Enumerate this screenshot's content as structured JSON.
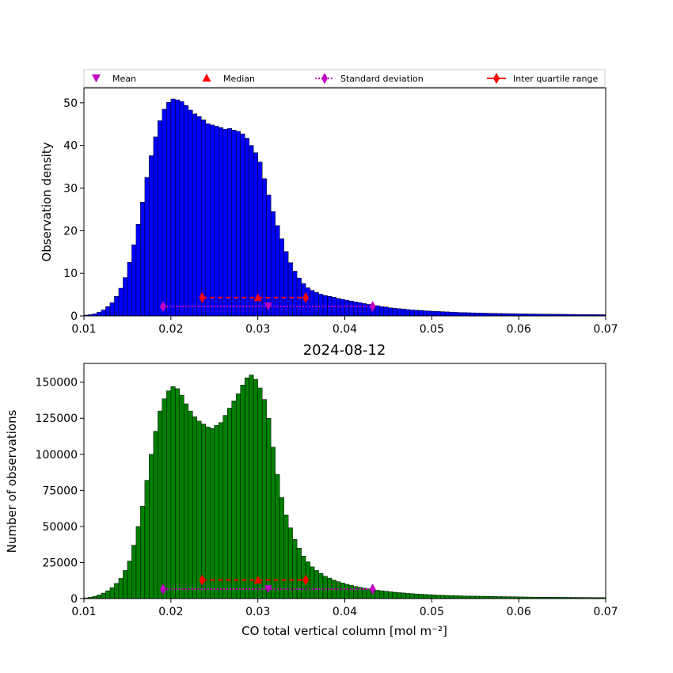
{
  "chart_data": [
    {
      "type": "bar",
      "title": "",
      "xlabel": "",
      "ylabel": "Observation density",
      "xlim": [
        0.01,
        0.07
      ],
      "ylim": [
        0,
        53.5
      ],
      "xticks": [
        0.01,
        0.02,
        0.03,
        0.04,
        0.05,
        0.06,
        0.07
      ],
      "xtick_labels": [
        "0.01",
        "0.02",
        "0.03",
        "0.04",
        "0.05",
        "0.06",
        "0.07"
      ],
      "yticks": [
        0,
        10,
        20,
        30,
        40,
        50
      ],
      "ytick_labels": [
        "0",
        "10",
        "20",
        "30",
        "40",
        "50"
      ],
      "bar_color": "#0000ff",
      "bin_width": 0.0005,
      "bins_start": 0.01,
      "values": [
        0.2,
        0.3,
        0.5,
        0.9,
        1.4,
        2.2,
        3.1,
        4.6,
        6.5,
        9.0,
        12.6,
        16.7,
        21.5,
        26.7,
        32.5,
        37.6,
        42.0,
        45.8,
        48.5,
        50.1,
        50.9,
        50.7,
        50.3,
        49.4,
        48.3,
        47.4,
        46.8,
        46.0,
        45.1,
        44.8,
        44.5,
        44.2,
        43.8,
        44.0,
        43.6,
        43.3,
        42.7,
        41.7,
        40.0,
        38.3,
        36.1,
        32.2,
        28.4,
        24.5,
        21.2,
        18.1,
        15.1,
        12.5,
        10.5,
        8.9,
        7.6,
        6.6,
        6.0,
        5.5,
        5.1,
        4.8,
        4.6,
        4.4,
        4.1,
        3.9,
        3.7,
        3.5,
        3.3,
        3.1,
        2.9,
        2.7,
        2.5,
        2.4,
        2.2,
        2.1,
        1.9,
        1.8,
        1.7,
        1.6,
        1.5,
        1.4,
        1.35,
        1.3,
        1.2,
        1.15,
        1.1,
        1.05,
        1.0,
        0.95,
        0.9,
        0.85,
        0.8,
        0.78,
        0.75,
        0.72,
        0.7,
        0.68,
        0.65,
        0.62,
        0.6,
        0.58,
        0.56,
        0.55,
        0.54,
        0.52,
        0.5,
        0.48,
        0.46,
        0.45,
        0.44,
        0.43,
        0.42,
        0.41,
        0.4,
        0.39,
        0.38,
        0.37,
        0.36,
        0.35,
        0.34,
        0.33,
        0.32,
        0.31,
        0.3,
        0.29
      ],
      "stats": {
        "mean": {
          "x": 0.0312,
          "y": 2.2
        },
        "median": {
          "x": 0.03,
          "y": 4.2
        },
        "std_range": {
          "x": [
            0.0191,
            0.0432
          ],
          "y": 2.2
        },
        "iqr": {
          "x": [
            0.0236,
            0.0355
          ],
          "y": 4.3
        }
      }
    },
    {
      "type": "bar",
      "title": "2024-08-12",
      "xlabel": "CO total vertical column [mol m⁻²]",
      "ylabel": "Number of observations",
      "xlim": [
        0.01,
        0.07
      ],
      "ylim": [
        0,
        163000
      ],
      "xticks": [
        0.01,
        0.02,
        0.03,
        0.04,
        0.05,
        0.06,
        0.07
      ],
      "xtick_labels": [
        "0.01",
        "0.02",
        "0.03",
        "0.04",
        "0.05",
        "0.06",
        "0.07"
      ],
      "yticks": [
        0,
        25000,
        50000,
        75000,
        100000,
        125000,
        150000
      ],
      "ytick_labels": [
        "0",
        "25000",
        "50000",
        "75000",
        "100000",
        "125000",
        "150000"
      ],
      "bar_color": "#008000",
      "bin_width": 0.0005,
      "bins_start": 0.01,
      "values": [
        500,
        900,
        1500,
        2500,
        3800,
        5400,
        7600,
        10500,
        14000,
        19500,
        26000,
        37000,
        50000,
        64000,
        82000,
        100000,
        116000,
        130000,
        138500,
        144000,
        147000,
        145500,
        141000,
        135000,
        130000,
        126000,
        123000,
        121000,
        119000,
        118000,
        120000,
        122000,
        127000,
        132000,
        137000,
        142000,
        148000,
        153000,
        155000,
        152000,
        146000,
        138000,
        125000,
        105000,
        86000,
        70000,
        58000,
        49000,
        41000,
        35000,
        29500,
        25500,
        22000,
        19500,
        17500,
        15500,
        14200,
        12800,
        11700,
        10800,
        9900,
        9100,
        8400,
        7800,
        7200,
        6700,
        6200,
        5800,
        5400,
        5100,
        4700,
        4400,
        4100,
        3900,
        3600,
        3400,
        3200,
        3000,
        2850,
        2700,
        2550,
        2400,
        2300,
        2200,
        2100,
        2000,
        1900,
        1800,
        1750,
        1700,
        1650,
        1600,
        1550,
        1500,
        1450,
        1400,
        1350,
        1300,
        1250,
        1200,
        1150,
        1100,
        1050,
        1000,
        980,
        960,
        940,
        920,
        900,
        880,
        860,
        840,
        820,
        800,
        780,
        760,
        740,
        720,
        700,
        680
      ],
      "stats": {
        "mean": {
          "x": 0.0312,
          "y": 6500
        },
        "median": {
          "x": 0.03,
          "y": 12600
        },
        "std_range": {
          "x": [
            0.0191,
            0.0432
          ],
          "y": 6500
        },
        "iqr": {
          "x": [
            0.0236,
            0.0355
          ],
          "y": 12800
        }
      }
    }
  ],
  "legend": {
    "placement": "top, above upper panel",
    "entries": [
      {
        "label": "Mean",
        "marker": "triangle-down",
        "color": "#bf00bf"
      },
      {
        "label": "Median",
        "marker": "triangle-up",
        "color": "#ff0000"
      },
      {
        "label": "Standard deviation",
        "marker": "thin-diamond",
        "line": "dotted",
        "color": "#bf00bf"
      },
      {
        "label": "Inter quartile range",
        "marker": "thin-diamond",
        "line": "solid",
        "color": "#ff0000"
      }
    ]
  },
  "colors": {
    "mean": "#bf00bf",
    "median": "#ff0000",
    "std": "#bf00bf",
    "iqr": "#ff0000"
  }
}
